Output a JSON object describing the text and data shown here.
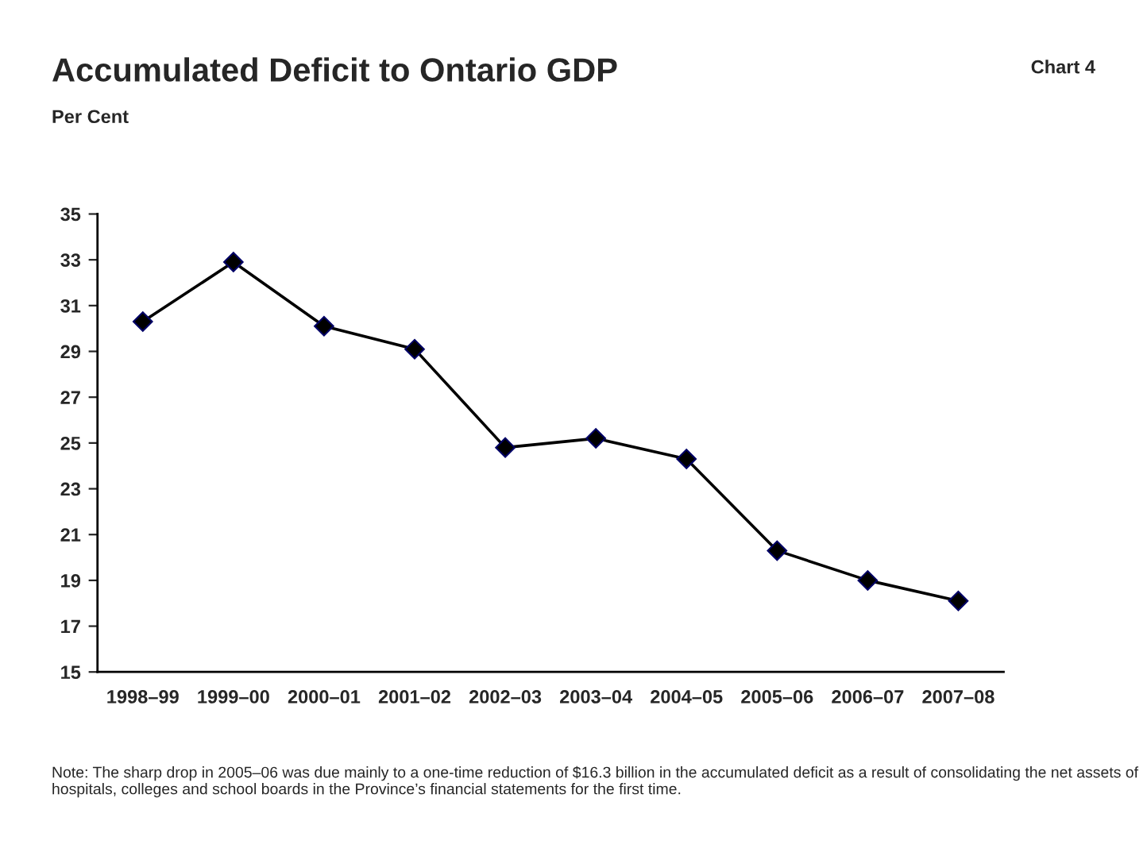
{
  "chart_data": {
    "type": "line",
    "title": "Accumulated Deficit to Ontario GDP",
    "subtitle": "Per Cent",
    "annotations": [
      "Chart 4",
      "Note: The sharp drop in 2005–06 was due mainly to a one-time reduction of $16.3 billion in the accumulated deficit as a result of consolidating the net assets of hospitals, colleges and school boards in the Province’s financial statements for the first time."
    ],
    "categories": [
      "1998–99",
      "1999–00",
      "2000–01",
      "2001–02",
      "2002–03",
      "2003–04",
      "2004–05",
      "2005–06",
      "2006–07",
      "2007–08"
    ],
    "series": [
      {
        "color": "#000000",
        "values": [
          30.3,
          32.9,
          30.1,
          29.1,
          24.8,
          25.2,
          24.3,
          20.3,
          19.0,
          18.1
        ]
      }
    ],
    "ylim": [
      15,
      35
    ],
    "yticks": [
      15,
      17,
      19,
      21,
      23,
      25,
      27,
      29,
      31,
      33,
      35
    ],
    "marker": "diamond",
    "line_style": "solid",
    "grid": false,
    "legend": false
  }
}
